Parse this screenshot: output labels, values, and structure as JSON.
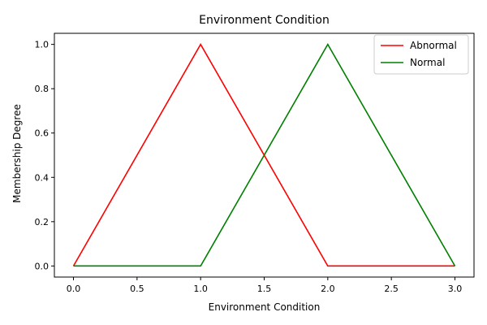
{
  "chart_data": {
    "type": "line",
    "title": "Environment Condition",
    "xlabel": "Environment Condition",
    "ylabel": "Membership Degree",
    "xlim": [
      -0.15,
      3.15
    ],
    "ylim": [
      -0.05,
      1.05
    ],
    "x_ticks": [
      0.0,
      0.5,
      1.0,
      1.5,
      2.0,
      2.5,
      3.0
    ],
    "x_tick_labels": [
      "0.0",
      "0.5",
      "1.0",
      "1.5",
      "2.0",
      "2.5",
      "3.0"
    ],
    "y_ticks": [
      0.0,
      0.2,
      0.4,
      0.6,
      0.8,
      1.0
    ],
    "y_tick_labels": [
      "0.0",
      "0.2",
      "0.4",
      "0.6",
      "0.8",
      "1.0"
    ],
    "grid": false,
    "legend_position": "top-right",
    "series": [
      {
        "name": "Abnormal",
        "color": "#ff0000",
        "x": [
          0,
          1,
          2,
          3
        ],
        "y": [
          0,
          1,
          0,
          0
        ]
      },
      {
        "name": "Normal",
        "color": "#008000",
        "x": [
          0,
          1,
          2,
          3
        ],
        "y": [
          0,
          0,
          1,
          0
        ]
      }
    ]
  }
}
